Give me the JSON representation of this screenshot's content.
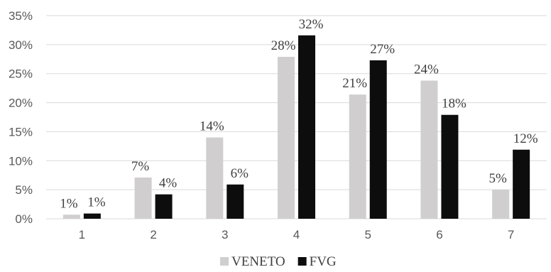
{
  "chart_data": {
    "type": "bar",
    "categories": [
      "1",
      "2",
      "3",
      "4",
      "5",
      "6",
      "7"
    ],
    "series": [
      {
        "name": "VENETO",
        "color": "#d0cece",
        "values": [
          0.7,
          7.1,
          14.0,
          27.9,
          21.4,
          23.8,
          5.0
        ],
        "labels": [
          "1%",
          "7%",
          "14%",
          "28%",
          "21%",
          "24%",
          "5%"
        ]
      },
      {
        "name": "FVG",
        "color": "#0d0d0d",
        "values": [
          0.9,
          4.2,
          5.9,
          31.6,
          27.3,
          17.9,
          11.9
        ],
        "labels": [
          "1%",
          "4%",
          "6%",
          "32%",
          "27%",
          "18%",
          "12%"
        ]
      }
    ],
    "yticks": [
      "0%",
      "5%",
      "10%",
      "15%",
      "20%",
      "25%",
      "30%",
      "35%"
    ],
    "ylim": [
      0,
      35
    ],
    "grid": true,
    "legend": "bottom",
    "title": "",
    "xlabel": "",
    "ylabel": ""
  }
}
